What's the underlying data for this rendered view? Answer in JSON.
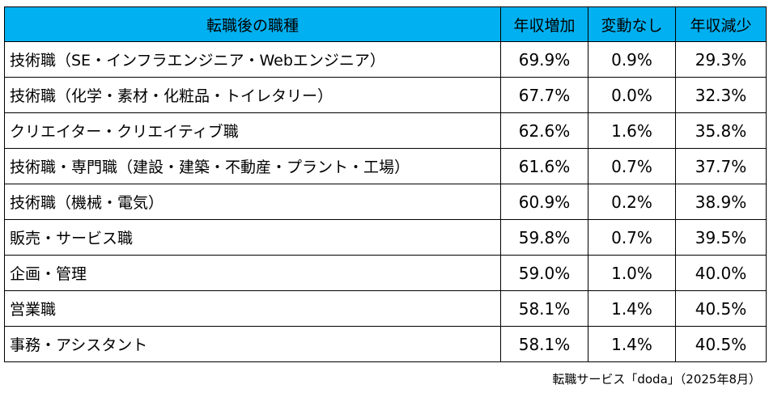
{
  "colors": {
    "header_bg": "#00b0f0",
    "border": "#000000",
    "text": "#000000"
  },
  "chart_data": {
    "type": "table",
    "columns": [
      "転職後の職種",
      "年収増加",
      "変動なし",
      "年収減少"
    ],
    "rows": [
      {
        "job": "技術職（SE・インフラエンジニア・Webエンジニア）",
        "increase": "69.9%",
        "same": "0.9%",
        "decrease": "29.3%"
      },
      {
        "job": "技術職（化学・素材・化粧品・トイレタリー）",
        "increase": "67.7%",
        "same": "0.0%",
        "decrease": "32.3%"
      },
      {
        "job": "クリエイター・クリエイティブ職",
        "increase": "62.6%",
        "same": "1.6%",
        "decrease": "35.8%"
      },
      {
        "job": "技術職・専門職（建設・建築・不動産・プラント・工場）",
        "increase": "61.6%",
        "same": "0.7%",
        "decrease": "37.7%"
      },
      {
        "job": "技術職（機械・電気）",
        "increase": "60.9%",
        "same": "0.2%",
        "decrease": "38.9%"
      },
      {
        "job": "販売・サービス職",
        "increase": "59.8%",
        "same": "0.7%",
        "decrease": "39.5%"
      },
      {
        "job": "企画・管理",
        "increase": "59.0%",
        "same": "1.0%",
        "decrease": "40.0%"
      },
      {
        "job": "営業職",
        "increase": "58.1%",
        "same": "1.4%",
        "decrease": "40.5%"
      },
      {
        "job": "事務・アシスタント",
        "increase": "58.1%",
        "same": "1.4%",
        "decrease": "40.5%"
      }
    ],
    "source": "転職サービス「doda」（2025年8月）"
  }
}
